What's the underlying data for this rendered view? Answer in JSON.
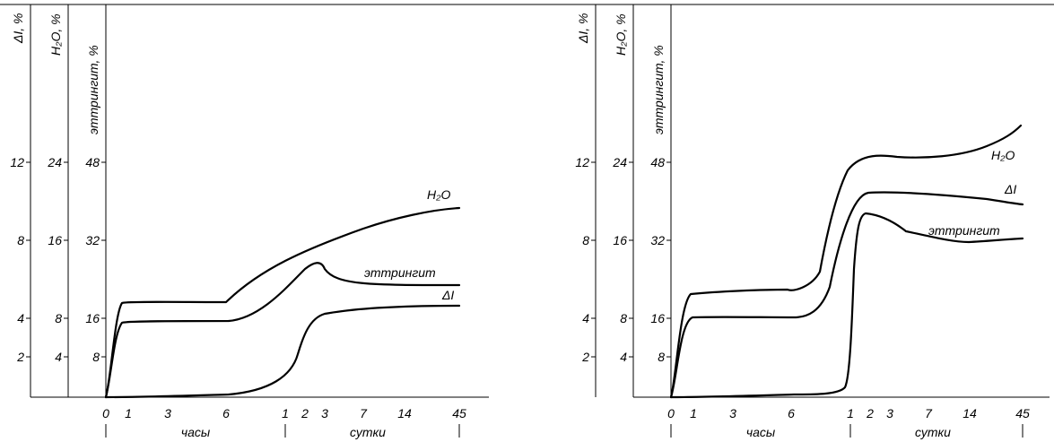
{
  "chart_data": [
    {
      "type": "line",
      "panel": "left",
      "y_axes": [
        {
          "label": "ΔI, %",
          "ticks": [
            2,
            4,
            8,
            12
          ],
          "range": [
            0,
            14
          ]
        },
        {
          "label": "H₂O, %",
          "ticks": [
            4,
            8,
            16,
            24
          ],
          "range": [
            0,
            28
          ]
        },
        {
          "label": "эттрингит, %",
          "ticks": [
            8,
            16,
            32,
            48
          ],
          "range": [
            0,
            56
          ]
        }
      ],
      "x_axis": {
        "ticks": [
          "0",
          "1",
          "3",
          "6",
          "1",
          "2",
          "3",
          "7",
          "14",
          "45"
        ],
        "periods": [
          "часы",
          "сутки"
        ]
      },
      "series": [
        {
          "name": "H₂O",
          "axis": "H₂O, %",
          "x": [
            "0",
            "0.5",
            "1",
            "3",
            "6",
            "1",
            "2",
            "3",
            "7",
            "14",
            "45"
          ],
          "values": [
            0,
            10.5,
            11.7,
            11.7,
            11.9,
            16,
            17.6,
            18.6,
            20.8,
            22.2,
            23.1
          ]
        },
        {
          "name": "эттрингит",
          "axis": "эттрингит, %",
          "x": [
            "0",
            "0.5",
            "1",
            "3",
            "6",
            "1",
            "2",
            "3",
            "7",
            "14",
            "45"
          ],
          "values": [
            0,
            18.5,
            19.5,
            19.5,
            19.5,
            23.5,
            27,
            27.5,
            25,
            23,
            23
          ]
        },
        {
          "name": "ΔI",
          "axis": "ΔI, %",
          "x": [
            "0",
            "1",
            "3",
            "6",
            "1",
            "2",
            "3",
            "7",
            "14",
            "45"
          ],
          "values": [
            0,
            0.05,
            0.2,
            0.35,
            2.2,
            6,
            7.6,
            8.3,
            8.6,
            8.6
          ]
        }
      ]
    },
    {
      "type": "line",
      "panel": "right",
      "y_axes": [
        {
          "label": "ΔI, %",
          "ticks": [
            2,
            4,
            8,
            12
          ],
          "range": [
            0,
            14
          ]
        },
        {
          "label": "H₂O, %",
          "ticks": [
            4,
            8,
            16,
            24
          ],
          "range": [
            0,
            28
          ]
        },
        {
          "label": "эттрингит, %",
          "ticks": [
            8,
            16,
            32,
            48
          ],
          "range": [
            0,
            56
          ]
        }
      ],
      "x_axis": {
        "ticks": [
          "0",
          "1",
          "3",
          "6",
          "1",
          "2",
          "3",
          "7",
          "14",
          "45"
        ],
        "periods": [
          "часы",
          "сутки"
        ]
      },
      "series": [
        {
          "name": "H₂O",
          "axis": "H₂O, %",
          "x": [
            "0",
            "0.5",
            "1",
            "3",
            "6",
            "7.5",
            "1",
            "2",
            "3",
            "7",
            "14",
            "45"
          ],
          "values": [
            0,
            10.5,
            12.2,
            12.5,
            12.7,
            13.9,
            23.5,
            25,
            25.2,
            25.1,
            25.3,
            27.3
          ]
        },
        {
          "name": "ΔI",
          "axis": "ΔI, %",
          "x": [
            "0",
            "0.5",
            "1",
            "3",
            "6",
            "7.5",
            "1",
            "2",
            "3",
            "7",
            "14",
            "45"
          ],
          "values": [
            0,
            8.3,
            8.8,
            8.8,
            8.7,
            9.8,
            19,
            20.5,
            20.6,
            20.5,
            20.2,
            19.8
          ]
        },
        {
          "name": "эттрингит",
          "axis": "эттрингит, %",
          "x": [
            "0",
            "1",
            "3",
            "6",
            "8.5",
            "1",
            "2",
            "3",
            "7",
            "14",
            "45"
          ],
          "values": [
            0,
            0.3,
            0.8,
            1.4,
            2,
            38,
            37.5,
            35,
            33.5,
            32,
            32.5
          ]
        }
      ]
    }
  ]
}
